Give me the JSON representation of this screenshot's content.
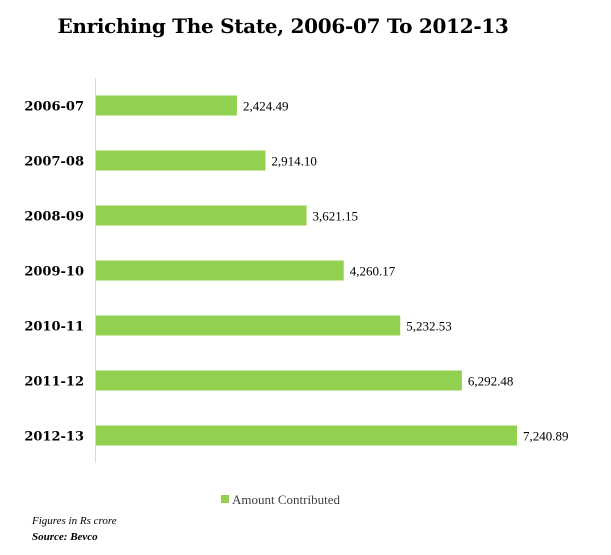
{
  "chart_data": {
    "type": "bar",
    "orientation": "horizontal",
    "title": "Enriching The State, 2006-07 To 2012-13",
    "categories": [
      "2006-07",
      "2007-08",
      "2008-09",
      "2009-10",
      "2010-11",
      "2011-12",
      "2012-13"
    ],
    "value_labels": [
      "2,424.49",
      "2,914.10",
      "3,621.15",
      "4,260.17",
      "5,232.53",
      "6,292.48",
      "7,240.89"
    ],
    "series": [
      {
        "name": "Amount Contributed",
        "values": [
          2424.49,
          2914.1,
          3621.15,
          4260.17,
          5232.53,
          6292.48,
          7240.89
        ],
        "color": "#92d050"
      }
    ],
    "xlim": [
      0,
      8000
    ],
    "grid": false,
    "legend_position": "bottom"
  },
  "notes": {
    "units": "Figures in Rs crore",
    "source": "Source: Bevco"
  }
}
